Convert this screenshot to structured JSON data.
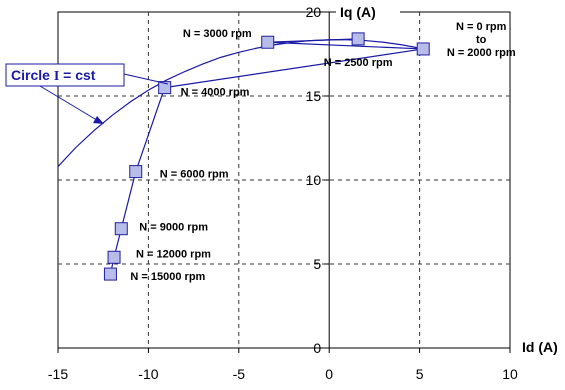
{
  "chart_data": {
    "type": "scatter",
    "title": "",
    "xlabel": "Id (A)",
    "ylabel": "Iq (A)",
    "xlim": [
      -15,
      10
    ],
    "ylim": [
      0,
      20
    ],
    "xticks": [
      -15,
      -10,
      -5,
      0,
      5,
      10
    ],
    "yticks": [
      0,
      5,
      10,
      15,
      20
    ],
    "grid": true,
    "series": [
      {
        "points": [
          {
            "x": -12.1,
            "y": 4.4,
            "label": "N = 15000 rpm"
          },
          {
            "x": -11.9,
            "y": 5.4,
            "label": "N = 12000 rpm"
          },
          {
            "x": -11.5,
            "y": 7.1,
            "label": "N = 9000 rpm"
          },
          {
            "x": -10.7,
            "y": 10.5,
            "label": "N = 6000 rpm"
          },
          {
            "x": -9.1,
            "y": 15.5,
            "label": "N = 4000 rpm"
          },
          {
            "x": -3.4,
            "y": 18.2,
            "label": "N = 3000 rpm"
          },
          {
            "x": 1.6,
            "y": 18.4,
            "label": "N = 2500 rpm"
          },
          {
            "x": 5.2,
            "y": 17.8,
            "label": "N = 0 rpm\nto\nN = 2000 rpm"
          }
        ]
      }
    ],
    "circle_curve": {
      "x": [
        -15,
        -14,
        -13,
        -12,
        -11,
        -10,
        -9,
        -8,
        -7,
        -6,
        -5,
        -4,
        -3,
        -2,
        -1,
        0,
        1,
        2,
        3,
        4,
        5
      ],
      "y": [
        10.8,
        11.95,
        12.95,
        13.85,
        14.65,
        15.35,
        15.95,
        16.45,
        16.9,
        17.3,
        17.6,
        17.85,
        18.05,
        18.2,
        18.3,
        18.35,
        18.35,
        18.3,
        18.2,
        18.05,
        17.85
      ]
    },
    "annotations": {
      "circle_label_prefix": "Circle ",
      "circle_label_symbol": "I",
      "circle_label_suffix": " = cst"
    },
    "colors": {
      "marker_fill": "#b8bce8",
      "marker_stroke": "#2020a0",
      "curve": "#1a1aa6",
      "grid": "#333333",
      "callout_border": "#1a1aa6"
    }
  }
}
